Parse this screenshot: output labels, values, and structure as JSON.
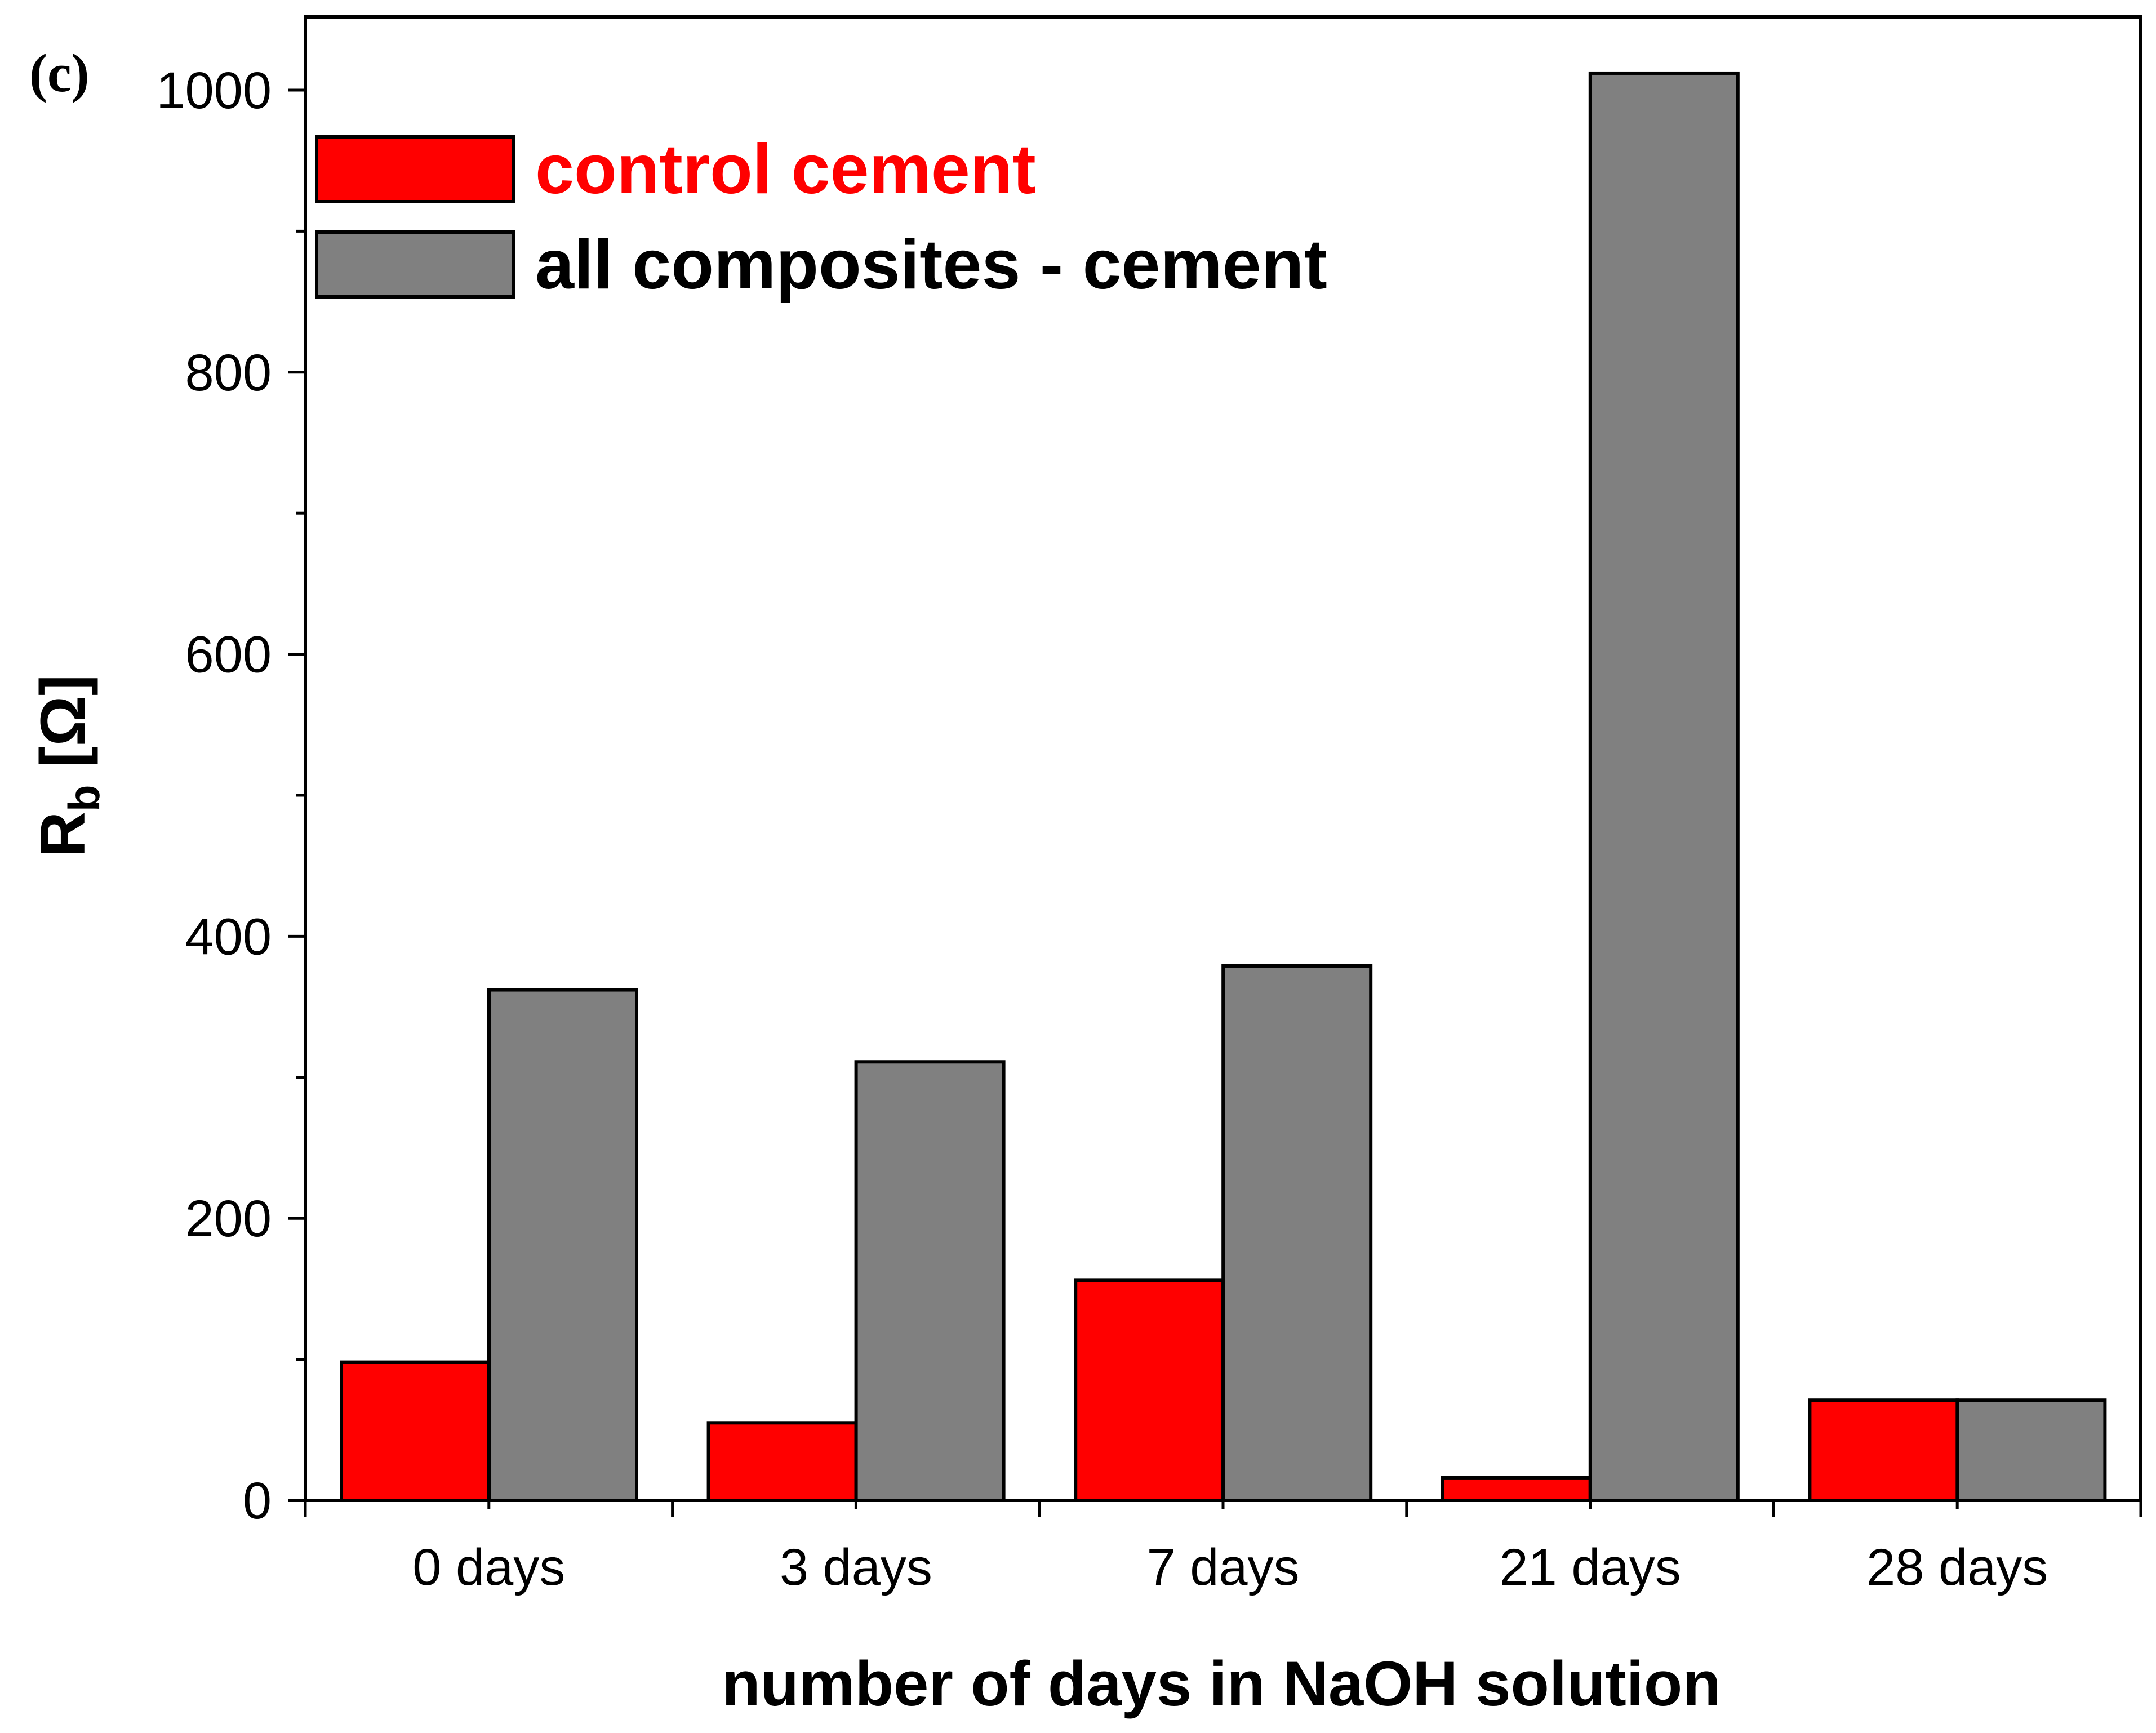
{
  "panel_label": "(c)",
  "colors": {
    "control_fill": "#ff0000",
    "composite_fill": "#808080",
    "control_text": "#ff0000",
    "composite_text": "#000000"
  },
  "chart_data": {
    "type": "bar",
    "title": "",
    "xlabel": "number of days in NaOH solution",
    "ylabel_main": "R",
    "ylabel_sub": "b",
    "ylabel_unit": " [Ω]",
    "categories": [
      "0 days",
      "3 days",
      "7 days",
      "21 days",
      "28 days"
    ],
    "series": [
      {
        "name": "control cement",
        "values": [
          98,
          55,
          156,
          16,
          71
        ]
      },
      {
        "name": "all composites - cement",
        "values": [
          362,
          311,
          379,
          1012,
          71
        ]
      }
    ],
    "ylim": [
      0,
      1000
    ],
    "yticks": [
      "0",
      "200",
      "400",
      "600",
      "800",
      "1000"
    ],
    "ytick_values": [
      0,
      200,
      400,
      600,
      800,
      1000
    ],
    "legend_position": "top-left"
  }
}
